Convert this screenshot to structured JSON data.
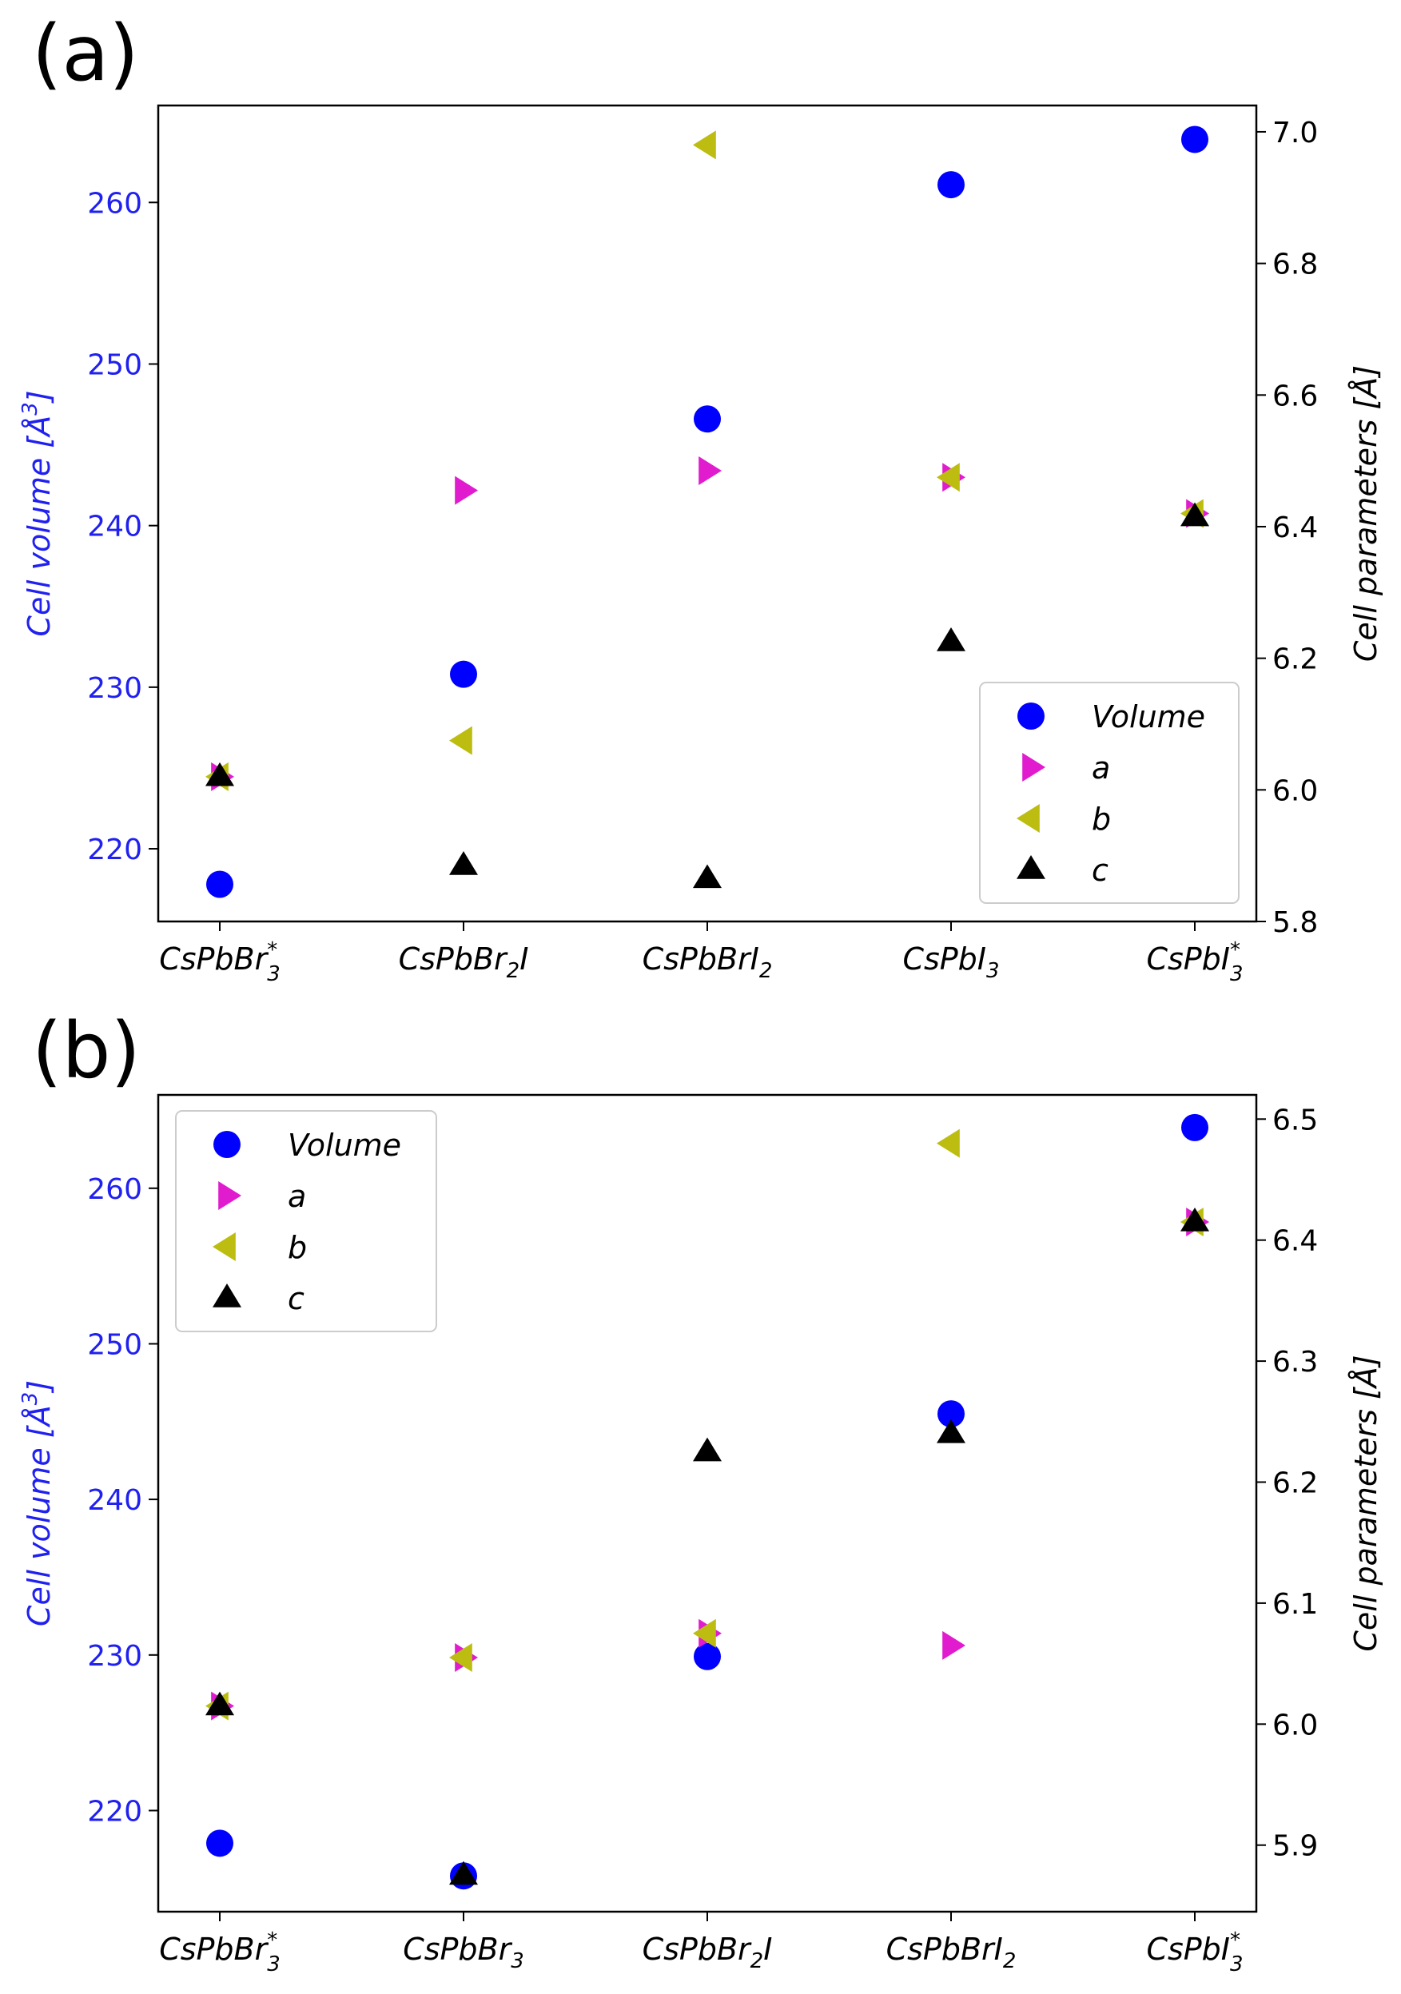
{
  "figure": {
    "legend_labels": [
      "Volume",
      "a",
      "b",
      "c"
    ]
  },
  "chart_data": [
    {
      "type": "scatter",
      "panel_label": "(a)",
      "categories": [
        {
          "base": "CsPbBr",
          "sub": "3",
          "sup": "*"
        },
        {
          "base": "CsPbBr",
          "sub": "2",
          "tail": "I"
        },
        {
          "base": "CsPbBrI",
          "sub": "2"
        },
        {
          "base": "CsPbI",
          "sub": "3"
        },
        {
          "base": "CsPbI",
          "sub": "3",
          "sup": "*"
        }
      ],
      "ylabel_left": {
        "main": "Cell volume [Å",
        "sup": "3",
        "end": "]"
      },
      "ylabel_right": "Cell parameters [Å]",
      "ylim_left": [
        215.5,
        266
      ],
      "ylim_right": [
        5.8,
        7.04
      ],
      "yticks_left": [
        220,
        230,
        240,
        250,
        260
      ],
      "yticks_right": [
        "5.8",
        "6.0",
        "6.2",
        "6.4",
        "6.6",
        "6.8",
        "7.0"
      ],
      "legend_position": "lower right",
      "series": [
        {
          "name": "Volume",
          "axis": "left",
          "marker": "circle",
          "color": "#0000ff",
          "values": [
            217.8,
            230.8,
            246.6,
            261.1,
            263.9
          ]
        },
        {
          "name": "a",
          "axis": "right",
          "marker": "triangle-right",
          "color": "#e01cce",
          "values": [
            6.02,
            6.455,
            6.485,
            6.475,
            6.42
          ]
        },
        {
          "name": "b",
          "axis": "right",
          "marker": "triangle-left",
          "color": "#bcbd10",
          "values": [
            6.02,
            6.075,
            6.98,
            6.475,
            6.42
          ]
        },
        {
          "name": "c",
          "axis": "right",
          "marker": "triangle-up",
          "color": "#000000",
          "values": [
            6.02,
            5.885,
            5.865,
            6.225,
            6.415
          ]
        }
      ]
    },
    {
      "type": "scatter",
      "panel_label": "(b)",
      "categories": [
        {
          "base": "CsPbBr",
          "sub": "3",
          "sup": "*"
        },
        {
          "base": "CsPbBr",
          "sub": "3"
        },
        {
          "base": "CsPbBr",
          "sub": "2",
          "tail": "I"
        },
        {
          "base": "CsPbBrI",
          "sub": "2"
        },
        {
          "base": "CsPbI",
          "sub": "3",
          "sup": "*"
        }
      ],
      "ylabel_left": {
        "main": "Cell volume [Å",
        "sup": "3",
        "end": "]"
      },
      "ylabel_right": "Cell parameters [Å]",
      "ylim_left": [
        213.5,
        266
      ],
      "ylim_right": [
        5.845,
        6.52
      ],
      "yticks_left": [
        220,
        230,
        240,
        250,
        260
      ],
      "yticks_right": [
        "5.9",
        "6.0",
        "6.1",
        "6.2",
        "6.3",
        "6.4",
        "6.5"
      ],
      "legend_position": "upper left",
      "series": [
        {
          "name": "Volume",
          "axis": "left",
          "marker": "circle",
          "color": "#0000ff",
          "values": [
            217.9,
            215.8,
            229.9,
            245.5,
            263.9
          ]
        },
        {
          "name": "a",
          "axis": "right",
          "marker": "triangle-right",
          "color": "#e01cce",
          "values": [
            6.015,
            6.055,
            6.075,
            6.065,
            6.415
          ]
        },
        {
          "name": "b",
          "axis": "right",
          "marker": "triangle-left",
          "color": "#bcbd10",
          "values": [
            6.015,
            6.055,
            6.075,
            6.48,
            6.415
          ]
        },
        {
          "name": "c",
          "axis": "right",
          "marker": "triangle-up",
          "color": "#000000",
          "values": [
            6.015,
            5.875,
            6.225,
            6.24,
            6.415
          ]
        }
      ]
    }
  ]
}
